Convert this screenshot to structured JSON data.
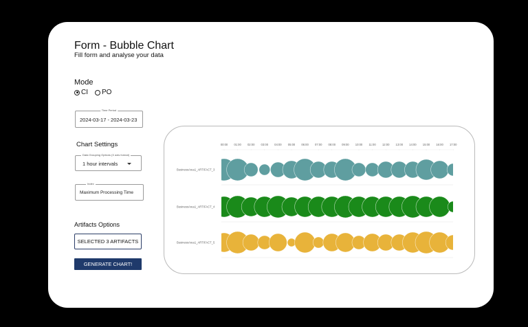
{
  "header": {
    "title": "Form - Bubble Chart",
    "subtitle": "Fill form and analyse your data"
  },
  "mode": {
    "label": "Mode",
    "options": [
      {
        "label": "CI",
        "selected": true
      },
      {
        "label": "PO",
        "selected": false
      }
    ]
  },
  "time_period": {
    "legend": "Time Period",
    "value": "2024-03-17 - 2024-03-23"
  },
  "chart_settings": {
    "heading": "Chart Settings",
    "grouping": {
      "legend": "Data Grouping Options (X axis format)",
      "value": "1 hour intervals"
    },
    "index": {
      "legend": "Index",
      "value": "Maximum Processing Time"
    }
  },
  "artifacts": {
    "heading": "Artifacts Options",
    "button_label": "SELECTED  3 ARTIFACTS"
  },
  "generate_button": "GENERATE CHART!",
  "colors": {
    "teal": "#5f9ea0",
    "green": "#1a8a1a",
    "yellow": "#e8b33a",
    "button_navy": "#1f3a6b"
  },
  "chart_data": {
    "type": "bubble",
    "title": "",
    "xlabel": "",
    "ylabel": "",
    "x": [
      "00:00",
      "01:00",
      "02:00",
      "03:00",
      "04:00",
      "05:00",
      "06:00",
      "07:00",
      "08:00",
      "09:00",
      "10:00",
      "11:00",
      "12:00",
      "13:00",
      "14:00",
      "15:00",
      "16:00",
      "17:00"
    ],
    "series": [
      {
        "name": "BusinessArea1_ARTIFACT_3",
        "color": "#5f9ea0",
        "sizes": [
          16,
          16,
          10,
          8,
          11,
          13,
          16,
          12,
          12,
          16,
          10,
          10,
          12,
          12,
          12,
          15,
          13,
          9
        ]
      },
      {
        "name": "BusinessArea1_ARTIFACT_4",
        "color": "#1a8a1a",
        "sizes": [
          15,
          16,
          14,
          15,
          16,
          14,
          15,
          15,
          15,
          16,
          15,
          15,
          15,
          15,
          16,
          15,
          15,
          8
        ]
      },
      {
        "name": "BusinessArea1_ARTIFACT_5",
        "color": "#e8b33a",
        "sizes": [
          14,
          16,
          12,
          10,
          13,
          6,
          15,
          8,
          13,
          14,
          10,
          13,
          12,
          12,
          15,
          16,
          15,
          11
        ]
      }
    ],
    "grid": false,
    "legend_position": "left row labels"
  }
}
